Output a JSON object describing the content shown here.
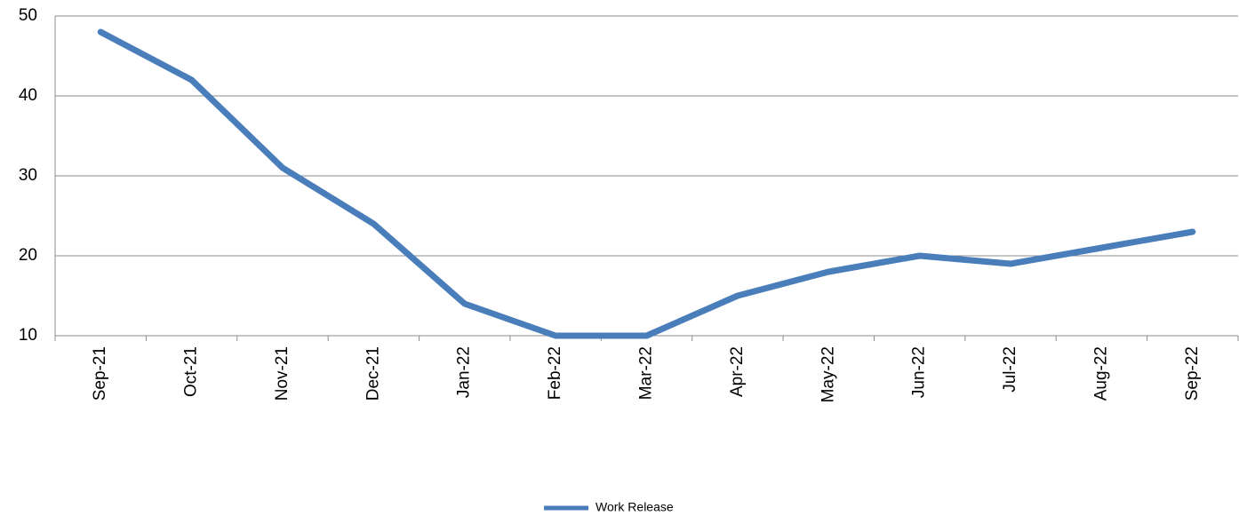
{
  "chart_data": {
    "type": "line",
    "categories": [
      "Sep-21",
      "Oct-21",
      "Nov-21",
      "Dec-21",
      "Jan-22",
      "Feb-22",
      "Mar-22",
      "Apr-22",
      "May-22",
      "Jun-22",
      "Jul-22",
      "Aug-22",
      "Sep-22"
    ],
    "series": [
      {
        "name": "Work Release",
        "color": "#4a7ebb",
        "values": [
          48,
          42,
          31,
          24,
          14,
          10,
          10,
          15,
          18,
          20,
          19,
          21,
          23
        ]
      }
    ],
    "ylim": [
      10,
      50
    ],
    "yticks": [
      10,
      20,
      30,
      40,
      50
    ],
    "grid": true,
    "legend": "bottom"
  }
}
